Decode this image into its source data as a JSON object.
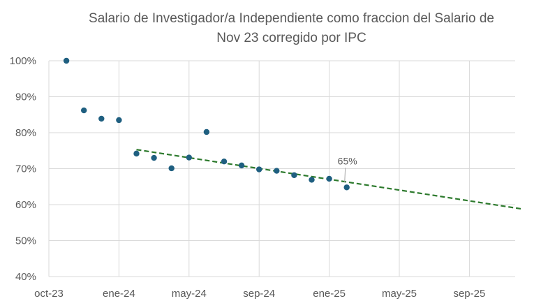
{
  "chart_data": {
    "type": "scatter",
    "title": [
      "Salario de Investigador/a Independiente como fraccion del  Salario de",
      "Nov 23 corregido por IPC"
    ],
    "xlabel": "",
    "ylabel": "",
    "x_ticks": [
      "oct-23",
      "ene-24",
      "may-24",
      "sep-24",
      "ene-25",
      "may-25",
      "sep-25"
    ],
    "x_range": [
      "2023-10",
      "2026-01"
    ],
    "y_ticks": [
      "40%",
      "50%",
      "60%",
      "70%",
      "80%",
      "90%",
      "100%"
    ],
    "ylim": [
      0.4,
      1.0
    ],
    "grid": "on",
    "legend": "none",
    "series": [
      {
        "marker_color": "#1f5f80",
        "points": [
          {
            "x": "2023-11",
            "y": 1.0
          },
          {
            "x": "2023-12",
            "y": 0.862
          },
          {
            "x": "2024-01",
            "y": 0.839
          },
          {
            "x": "2024-02",
            "y": 0.835
          },
          {
            "x": "2024-03",
            "y": 0.742
          },
          {
            "x": "2024-04",
            "y": 0.73
          },
          {
            "x": "2024-05",
            "y": 0.701
          },
          {
            "x": "2024-06",
            "y": 0.731
          },
          {
            "x": "2024-07",
            "y": 0.802
          },
          {
            "x": "2024-08",
            "y": 0.72
          },
          {
            "x": "2024-09",
            "y": 0.709
          },
          {
            "x": "2024-10",
            "y": 0.698
          },
          {
            "x": "2024-11",
            "y": 0.694
          },
          {
            "x": "2024-12",
            "y": 0.682
          },
          {
            "x": "2025-01",
            "y": 0.669
          },
          {
            "x": "2025-02",
            "y": 0.672
          },
          {
            "x": "2025-03",
            "y": 0.648
          }
        ]
      }
    ],
    "trendline": {
      "color": "#2d7a2d",
      "style": "dashed",
      "from": {
        "x": "2024-03",
        "y": 0.753
      },
      "to": {
        "x": "2026-01",
        "y": 0.588
      }
    },
    "annotations": [
      {
        "text": "65%",
        "x": "2025-03",
        "y": 0.648
      }
    ]
  }
}
